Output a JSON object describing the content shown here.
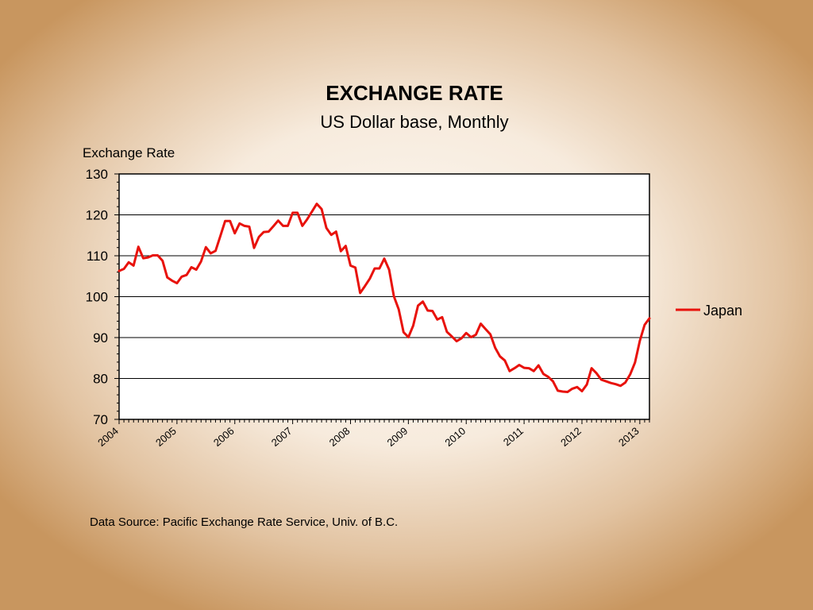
{
  "slide": {
    "title": "EXCHANGE  RATE",
    "subtitle": "US Dollar base, Monthly",
    "source": "Data Source:  Pacific Exchange Rate Service, Univ. of B.C."
  },
  "colors": {
    "series": "#e8120c",
    "plot_background": "#ffffff",
    "gridline": "#000000"
  },
  "chart_data": {
    "type": "line",
    "title": "EXCHANGE  RATE",
    "subtitle": "US Dollar base, Monthly",
    "ylabel": "Exchange Rate",
    "xlabel": "",
    "ylim": [
      70,
      130
    ],
    "yticks": [
      70,
      80,
      90,
      100,
      110,
      120,
      130
    ],
    "xlim": [
      "2004-01",
      "2013-03"
    ],
    "x_tick_labels": [
      "2004",
      "2005",
      "2006",
      "2007",
      "2008",
      "2009",
      "2010",
      "2011",
      "2012",
      "2013"
    ],
    "grid": "horizontal",
    "legend_position": "right",
    "series": [
      {
        "name": "Japan",
        "x": [
          "2004-01",
          "2004-02",
          "2004-03",
          "2004-04",
          "2004-05",
          "2004-06",
          "2004-07",
          "2004-08",
          "2004-09",
          "2004-10",
          "2004-11",
          "2004-12",
          "2005-01",
          "2005-02",
          "2005-03",
          "2005-04",
          "2005-05",
          "2005-06",
          "2005-07",
          "2005-08",
          "2005-09",
          "2005-10",
          "2005-11",
          "2005-12",
          "2006-01",
          "2006-02",
          "2006-03",
          "2006-04",
          "2006-05",
          "2006-06",
          "2006-07",
          "2006-08",
          "2006-09",
          "2006-10",
          "2006-11",
          "2006-12",
          "2007-01",
          "2007-02",
          "2007-03",
          "2007-04",
          "2007-05",
          "2007-06",
          "2007-07",
          "2007-08",
          "2007-09",
          "2007-10",
          "2007-11",
          "2007-12",
          "2008-01",
          "2008-02",
          "2008-03",
          "2008-04",
          "2008-05",
          "2008-06",
          "2008-07",
          "2008-08",
          "2008-09",
          "2008-10",
          "2008-11",
          "2008-12",
          "2009-01",
          "2009-02",
          "2009-03",
          "2009-04",
          "2009-05",
          "2009-06",
          "2009-07",
          "2009-08",
          "2009-09",
          "2009-10",
          "2009-11",
          "2009-12",
          "2010-01",
          "2010-02",
          "2010-03",
          "2010-04",
          "2010-05",
          "2010-06",
          "2010-07",
          "2010-08",
          "2010-09",
          "2010-10",
          "2010-11",
          "2010-12",
          "2011-01",
          "2011-02",
          "2011-03",
          "2011-04",
          "2011-05",
          "2011-06",
          "2011-07",
          "2011-08",
          "2011-09",
          "2011-10",
          "2011-11",
          "2011-12",
          "2012-01",
          "2012-02",
          "2012-03",
          "2012-04",
          "2012-05",
          "2012-06",
          "2012-07",
          "2012-08",
          "2012-09",
          "2012-10",
          "2012-11",
          "2012-12",
          "2013-01",
          "2013-02",
          "2013-03"
        ],
        "values": [
          106.3,
          106.8,
          108.4,
          107.6,
          112.2,
          109.4,
          109.6,
          110.1,
          110.1,
          108.8,
          104.7,
          103.9,
          103.3,
          104.9,
          105.3,
          107.2,
          106.6,
          108.6,
          112.1,
          110.6,
          111.2,
          114.8,
          118.5,
          118.5,
          115.5,
          117.9,
          117.3,
          117.1,
          111.9,
          114.6,
          115.8,
          115.9,
          117.2,
          118.6,
          117.3,
          117.3,
          120.5,
          120.5,
          117.3,
          118.9,
          120.8,
          122.7,
          121.4,
          116.8,
          115.1,
          115.9,
          111.1,
          112.4,
          107.6,
          107.1,
          100.9,
          102.6,
          104.4,
          106.9,
          106.9,
          109.3,
          106.6,
          100.1,
          96.9,
          91.3,
          90.1,
          92.9,
          97.8,
          98.8,
          96.6,
          96.5,
          94.4,
          95.0,
          91.4,
          90.3,
          89.1,
          89.8,
          91.1,
          90.1,
          90.7,
          93.4,
          92.1,
          90.8,
          87.5,
          85.4,
          84.4,
          81.8,
          82.5,
          83.3,
          82.6,
          82.5,
          81.8,
          83.2,
          81.1,
          80.4,
          79.3,
          77.0,
          76.8,
          76.7,
          77.5,
          77.9,
          76.9,
          78.5,
          82.5,
          81.3,
          79.7,
          79.3,
          78.9,
          78.6,
          78.2,
          79.0,
          81.0,
          83.9,
          89.2,
          93.1,
          94.7
        ]
      }
    ]
  }
}
